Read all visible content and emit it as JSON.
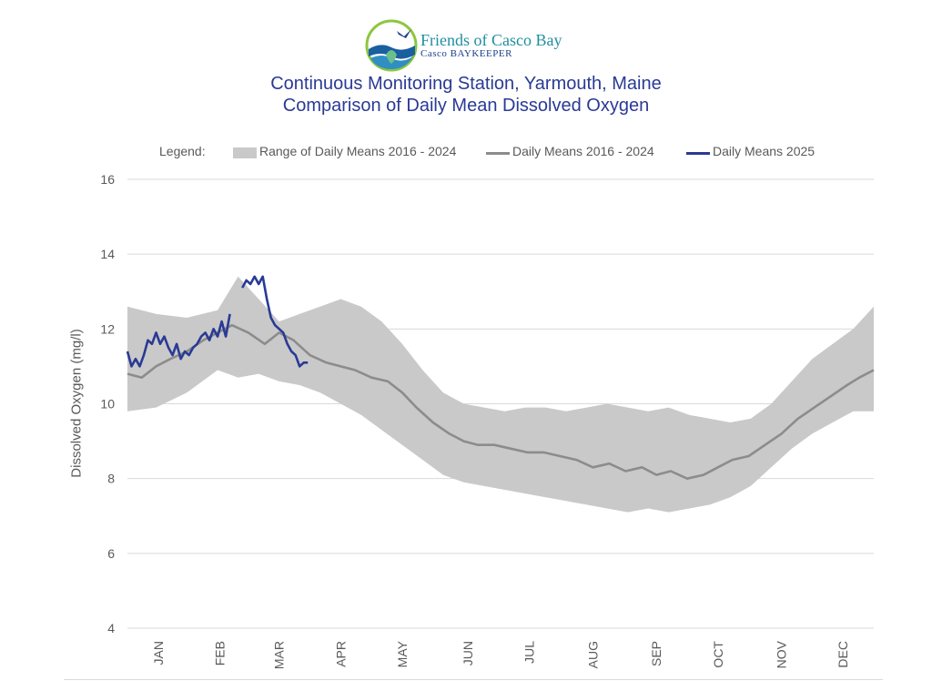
{
  "brand": {
    "name": "Friends of Casco Bay",
    "sub": "Casco BAYKEEPER"
  },
  "colors": {
    "range": "#c9c9c9",
    "mean": "#8c8c8c",
    "current": "#2a3a95",
    "title": "#2a3a95",
    "text": "#595959",
    "grid": "#d9d9d9"
  },
  "chart_data": {
    "type": "area",
    "title": "Continuous Monitoring Station, Yarmouth, Maine",
    "subtitle": "Comparison of Daily Mean Dissolved Oxygen",
    "ylabel": "Dissolved Oxygen (mg/l)",
    "xlabel": "",
    "ylim": [
      4,
      16
    ],
    "yticks": [
      4,
      6,
      8,
      10,
      12,
      14,
      16
    ],
    "xlim": [
      1,
      365
    ],
    "months": [
      {
        "label": "JAN",
        "day": 16
      },
      {
        "label": "FEB",
        "day": 46
      },
      {
        "label": "MAR",
        "day": 75
      },
      {
        "label": "APR",
        "day": 105
      },
      {
        "label": "MAY",
        "day": 135
      },
      {
        "label": "JUN",
        "day": 167
      },
      {
        "label": "JUL",
        "day": 197
      },
      {
        "label": "AUG",
        "day": 228
      },
      {
        "label": "SEP",
        "day": 259
      },
      {
        "label": "OCT",
        "day": 289
      },
      {
        "label": "NOV",
        "day": 320
      },
      {
        "label": "DEC",
        "day": 350
      }
    ],
    "grid": "horizontal",
    "legend_title": "Legend:",
    "legend_position": "top",
    "series": [
      {
        "name": "Range of Daily Means 2016 - 2024",
        "kind": "band",
        "x": [
          1,
          15,
          30,
          45,
          55,
          65,
          75,
          85,
          95,
          105,
          115,
          125,
          135,
          145,
          155,
          165,
          175,
          185,
          195,
          205,
          215,
          225,
          235,
          245,
          255,
          265,
          275,
          285,
          295,
          305,
          315,
          325,
          335,
          345,
          355,
          365
        ],
        "low": [
          9.8,
          9.9,
          10.3,
          10.9,
          10.7,
          10.8,
          10.6,
          10.5,
          10.3,
          10.0,
          9.7,
          9.3,
          8.9,
          8.5,
          8.1,
          7.9,
          7.8,
          7.7,
          7.6,
          7.5,
          7.4,
          7.3,
          7.2,
          7.1,
          7.2,
          7.1,
          7.2,
          7.3,
          7.5,
          7.8,
          8.3,
          8.8,
          9.2,
          9.5,
          9.8,
          9.8
        ],
        "high": [
          12.6,
          12.4,
          12.3,
          12.5,
          13.4,
          12.8,
          12.2,
          12.4,
          12.6,
          12.8,
          12.6,
          12.2,
          11.6,
          10.9,
          10.3,
          10.0,
          9.9,
          9.8,
          9.9,
          9.9,
          9.8,
          9.9,
          10.0,
          9.9,
          9.8,
          9.9,
          9.7,
          9.6,
          9.5,
          9.6,
          10.0,
          10.6,
          11.2,
          11.6,
          12.0,
          12.6
        ]
      },
      {
        "name": "Daily Means 2016 - 2024",
        "kind": "line",
        "x": [
          1,
          8,
          15,
          22,
          30,
          38,
          45,
          52,
          60,
          68,
          75,
          82,
          90,
          98,
          105,
          112,
          120,
          128,
          135,
          142,
          150,
          158,
          165,
          172,
          180,
          188,
          196,
          204,
          212,
          220,
          228,
          236,
          244,
          252,
          259,
          266,
          274,
          282,
          289,
          296,
          304,
          312,
          320,
          328,
          336,
          344,
          352,
          358,
          365
        ],
        "values": [
          10.8,
          10.7,
          11.0,
          11.2,
          11.4,
          11.7,
          11.9,
          12.1,
          11.9,
          11.6,
          11.9,
          11.7,
          11.3,
          11.1,
          11.0,
          10.9,
          10.7,
          10.6,
          10.3,
          9.9,
          9.5,
          9.2,
          9.0,
          8.9,
          8.9,
          8.8,
          8.7,
          8.7,
          8.6,
          8.5,
          8.3,
          8.4,
          8.2,
          8.3,
          8.1,
          8.2,
          8.0,
          8.1,
          8.3,
          8.5,
          8.6,
          8.9,
          9.2,
          9.6,
          9.9,
          10.2,
          10.5,
          10.7,
          10.9
        ]
      },
      {
        "name": "Daily Means 2025",
        "kind": "line",
        "x": [
          1,
          3,
          5,
          7,
          9,
          11,
          13,
          15,
          17,
          19,
          21,
          23,
          25,
          27,
          29,
          31,
          33,
          35,
          37,
          39,
          41,
          43,
          45,
          47,
          49,
          51,
          53,
          55,
          57,
          59,
          61,
          63,
          65,
          67,
          69,
          71,
          73,
          75,
          77,
          79,
          81,
          83,
          85,
          87,
          89
        ],
        "values": [
          11.4,
          11.0,
          11.2,
          11.0,
          11.3,
          11.7,
          11.6,
          11.9,
          11.6,
          11.8,
          11.5,
          11.3,
          11.6,
          11.2,
          11.4,
          11.3,
          11.5,
          11.6,
          11.8,
          11.9,
          11.7,
          12.0,
          11.8,
          12.2,
          11.8,
          12.4,
          null,
          null,
          13.1,
          13.3,
          13.2,
          13.4,
          13.2,
          13.4,
          12.8,
          12.3,
          12.1,
          12.0,
          11.9,
          11.6,
          11.4,
          11.3,
          11.0,
          11.1,
          11.1
        ]
      }
    ]
  }
}
